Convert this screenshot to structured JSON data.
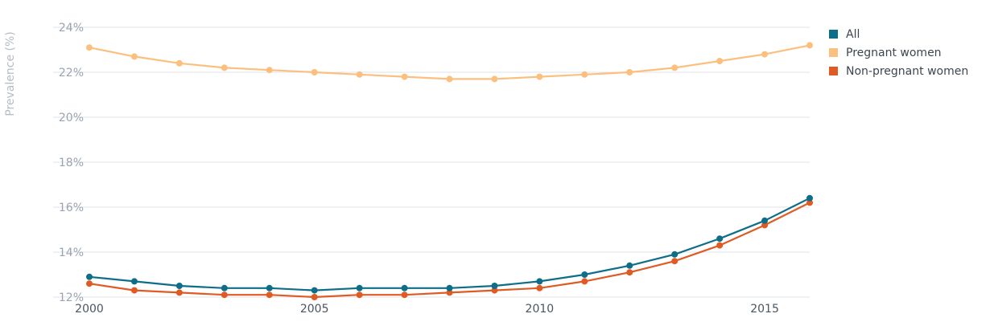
{
  "chart_data": {
    "type": "line",
    "ylabel": "Prevalence (%)",
    "ylim": [
      12,
      24
    ],
    "yticks": [
      12,
      14,
      16,
      18,
      20,
      22,
      24
    ],
    "ytick_labels": [
      "12%",
      "14%",
      "16%",
      "18%",
      "20%",
      "22%",
      "24%"
    ],
    "xlim": [
      2000,
      2016
    ],
    "xticks": [
      2000,
      2005,
      2010,
      2015
    ],
    "xtick_labels": [
      "2000",
      "2005",
      "2010",
      "2015"
    ],
    "grid": true,
    "legend_position": "top-right",
    "x": [
      2000,
      2001,
      2002,
      2003,
      2004,
      2005,
      2006,
      2007,
      2008,
      2009,
      2010,
      2011,
      2012,
      2013,
      2014,
      2015,
      2016
    ],
    "series": [
      {
        "name": "All",
        "color": "#0f6e87",
        "values": [
          12.9,
          12.7,
          12.5,
          12.4,
          12.4,
          12.3,
          12.4,
          12.4,
          12.4,
          12.5,
          12.7,
          13.0,
          13.4,
          13.9,
          14.6,
          15.4,
          16.4
        ]
      },
      {
        "name": "Pregnant women",
        "color": "#fbc07f",
        "values": [
          23.1,
          22.7,
          22.4,
          22.2,
          22.1,
          22.0,
          21.9,
          21.8,
          21.7,
          21.7,
          21.8,
          21.9,
          22.0,
          22.2,
          22.5,
          22.8,
          23.2
        ]
      },
      {
        "name": "Non-pregnant women",
        "color": "#e05a24",
        "values": [
          12.6,
          12.3,
          12.2,
          12.1,
          12.1,
          12.0,
          12.1,
          12.1,
          12.2,
          12.3,
          12.4,
          12.7,
          13.1,
          13.6,
          14.3,
          15.2,
          16.2
        ]
      }
    ]
  }
}
